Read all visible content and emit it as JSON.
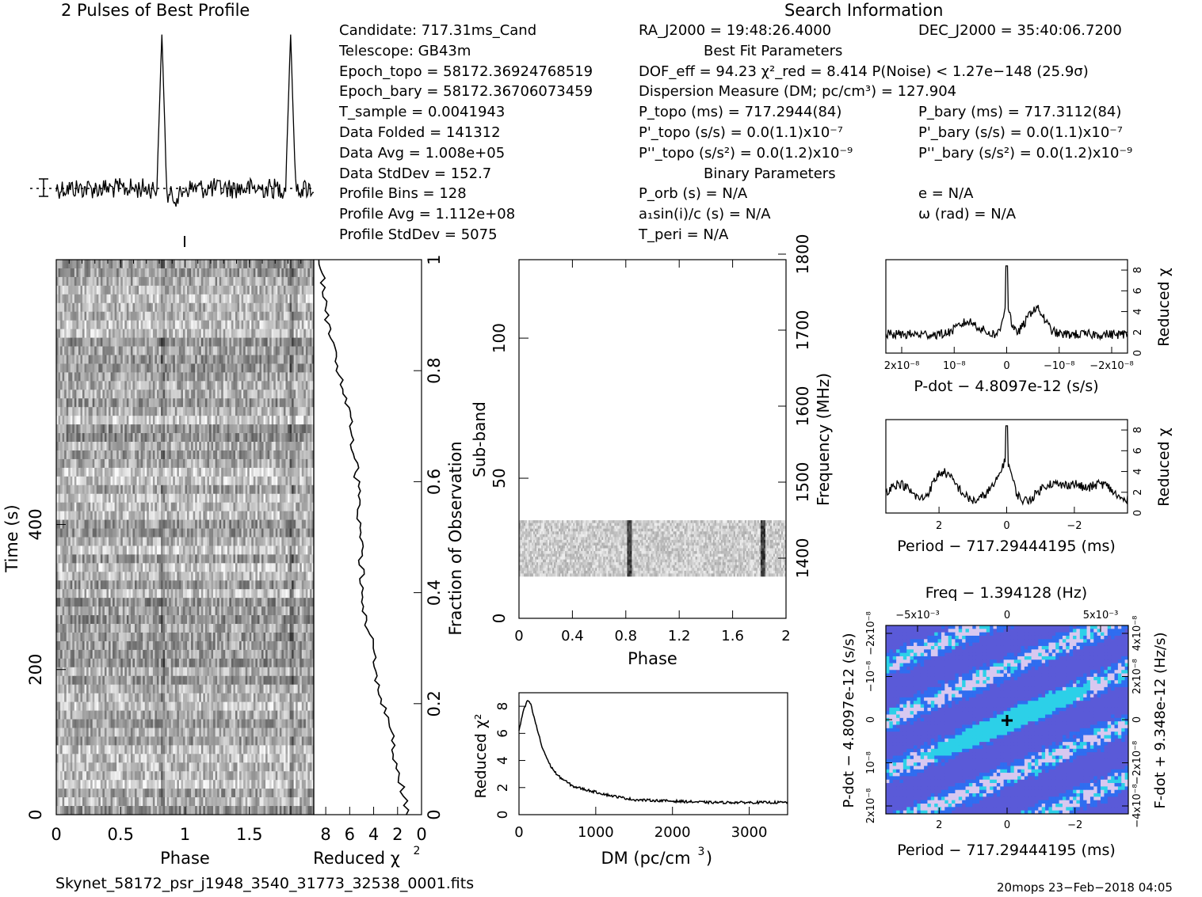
{
  "header": {
    "profile_title": "2 Pulses of Best Profile",
    "search_title": "Search Information"
  },
  "info": {
    "col1": [
      "Candidate:  717.31ms_Cand",
      "Telescope:  GB43m",
      "Epoch_topo = 58172.36924768519",
      "Epoch_bary = 58172.36706073459",
      "T_sample     =  0.0041943",
      "Data Folded     =  141312",
      "Data Avg        =  1.008e+05",
      "Data StdDev     =  152.7",
      "Profile Bins    =  128",
      "Profile Avg     =  1.112e+08",
      "Profile StdDev  =  5075"
    ],
    "col2": [
      "RA_J2000 = 19:48:26.4000",
      "Best Fit Parameters",
      "DOF_eff = 94.23  χ²_red = 8.414  P(Noise) < 1.27e−148  (25.9σ)",
      "Dispersion Measure (DM; pc/cm³) = 127.904",
      "P_topo (ms) =  717.2944(84)",
      "P'_topo (s/s) = 0.0(1.1)x10⁻⁷",
      "P''_topo (s/s²) = 0.0(1.2)x10⁻⁹",
      "Binary Parameters",
      "P_orb (s) = N/A",
      "a₁sin(i)/c (s) = N/A",
      "T_peri = N/A"
    ],
    "col3": [
      "DEC_J2000 = 35:40:06.7200",
      "P_bary (ms) =  717.3112(84)",
      "P'_bary (s/s) = 0.0(1.1)x10⁻⁷",
      "P''_bary (s/s²) = 0.0(1.2)x10⁻⁹",
      "e = N/A",
      "ω (rad) = N/A"
    ]
  },
  "footer": {
    "filename": "Skynet_58172_psr_j1948_3540_31773_32538_0001.fits",
    "stamp": "20mops 23−Feb−2018 04:05"
  },
  "chart_data": [
    {
      "type": "line",
      "id": "profile",
      "title": "2 Pulses of Best Profile",
      "x_range": [
        0,
        2
      ],
      "peaks_at_phase": [
        0.82,
        1.82
      ],
      "mean_marker": "dotted line with error bar"
    },
    {
      "type": "heatmap",
      "id": "time-phase",
      "xlabel": "Phase",
      "ylabel": "Time (s)",
      "xlim": [
        0,
        2
      ],
      "ylim": [
        0,
        765
      ],
      "x_ticks": [
        "0",
        "0.5",
        "1",
        "1.5"
      ],
      "y_ticks": [
        "0",
        "200",
        "400"
      ],
      "right_axis_label": "Fraction of Observation",
      "right_ticks": [
        "0",
        "0.2",
        "0.4",
        "0.6",
        "0.8",
        "1"
      ]
    },
    {
      "type": "line",
      "id": "chi2-vs-time",
      "xlabel": "Reduced χ²",
      "x_ticks": [
        "8",
        "6",
        "4",
        "2",
        "0"
      ],
      "fraction": [
        0,
        0.05,
        0.1,
        0.15,
        0.2,
        0.25,
        0.3,
        0.35,
        0.4,
        0.45,
        0.5,
        0.55,
        0.6,
        0.65,
        0.7,
        0.75,
        0.8,
        0.85,
        0.9,
        0.95,
        1.0
      ],
      "reduced_chi2": [
        1.2,
        1.6,
        2.2,
        2.6,
        3.3,
        3.9,
        4.1,
        4.6,
        4.9,
        5.0,
        5.1,
        5.2,
        5.4,
        5.6,
        5.9,
        6.2,
        6.9,
        7.5,
        7.9,
        8.2,
        8.4
      ]
    },
    {
      "type": "heatmap",
      "id": "subband-phase",
      "xlabel": "Phase",
      "ylabel": "Sub-band",
      "right_axis_label": "Frequency (MHz)",
      "xlim": [
        0,
        2
      ],
      "ylim": [
        0,
        128
      ],
      "x_ticks": [
        "0",
        "0.4",
        "0.8",
        "1.2",
        "1.6",
        "2"
      ],
      "y_ticks": [
        "0",
        "50",
        "100"
      ],
      "right_ticks": [
        "1400",
        "1500",
        "1600",
        "1700",
        "1800"
      ],
      "signal_subbands": [
        15,
        35
      ],
      "pulse_phase": [
        0.82,
        1.82
      ]
    },
    {
      "type": "line",
      "id": "chi2-vs-dm",
      "xlabel": "DM (pc/cm³)",
      "ylabel": "Reduced χ²",
      "xlim": [
        0,
        3500
      ],
      "ylim": [
        0,
        9
      ],
      "x_ticks": [
        "0",
        "1000",
        "2000",
        "3000"
      ],
      "y_ticks": [
        "0",
        "2",
        "4",
        "6",
        "8"
      ],
      "x": [
        0,
        50,
        100,
        128,
        150,
        200,
        300,
        400,
        500,
        700,
        900,
        1200,
        1500,
        2000,
        2500,
        3000,
        3500
      ],
      "y": [
        6.2,
        7.5,
        8.3,
        8.4,
        8.2,
        7.1,
        5.0,
        3.7,
        2.9,
        2.1,
        1.8,
        1.4,
        1.1,
        1.0,
        0.9,
        0.9,
        0.9
      ]
    },
    {
      "type": "line",
      "id": "chi2-vs-pdot",
      "xlabel": "P-dot − 4.8097e-12 (s/s)",
      "ylabel": "Reduced χ²",
      "x_ticks": [
        "2x10⁻⁸",
        "10⁻⁸",
        "0",
        "−10⁻⁸",
        "−2x10⁻⁸"
      ],
      "y_ticks": [
        "0",
        "2",
        "4",
        "6",
        "8"
      ],
      "ylim": [
        0,
        9
      ],
      "peak": 8.4
    },
    {
      "type": "line",
      "id": "chi2-vs-period",
      "xlabel": "Period − 717.29444195 (ms)",
      "ylabel": "Reduced χ²",
      "x_ticks": [
        "2",
        "0",
        "−2"
      ],
      "y_ticks": [
        "0",
        "2",
        "4",
        "6",
        "8"
      ],
      "ylim": [
        0,
        9
      ],
      "peak": 8.4
    },
    {
      "type": "heatmap",
      "id": "p-pdot-plane",
      "top_label": "Freq − 1.394128 (Hz)",
      "top_ticks": [
        "−5x10⁻³",
        "0",
        "5x10⁻³"
      ],
      "xlabel": "Period − 717.29444195 (ms)",
      "x_ticks": [
        "2",
        "0",
        "−2"
      ],
      "ylabel": "P-dot − 4.8097e-12 (s/s)",
      "y_ticks": [
        "2x10⁻⁸",
        "10⁻⁸",
        "0",
        "−10⁻⁸",
        "−2x10⁻⁸"
      ],
      "right_label": "F-dot + 9.348e-12 (Hz/s)",
      "right_ticks": [
        "−4x10⁻⁸",
        "−2x10⁻⁸",
        "0",
        "2x10⁻⁸",
        "4x10⁻⁸"
      ],
      "colors": {
        "low": "#5a5ad8",
        "mid": "#2f6df0",
        "high": "#2cd0e8",
        "lavender": "#d8c8f0"
      }
    }
  ]
}
